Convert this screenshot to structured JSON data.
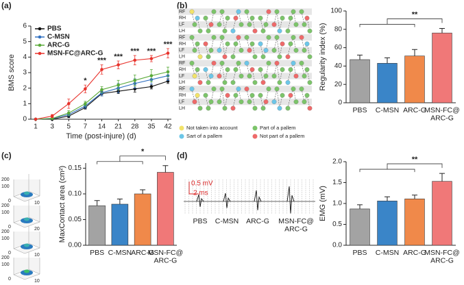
{
  "panel_labels": [
    "(a)",
    "(b)",
    "(c)",
    "(d)"
  ],
  "chart_data": [
    {
      "type": "line",
      "x_label": "Time (post-injure) (d)",
      "y_label": "BMS score",
      "categories": [
        "1",
        "3",
        "5",
        "7",
        "14",
        "21",
        "28",
        "35",
        "42"
      ],
      "ylim": [
        0,
        6
      ],
      "yticks": [
        0,
        1,
        2,
        3,
        4,
        5,
        6
      ],
      "legend": "upper left",
      "series": [
        {
          "name": "PBS",
          "color": "#111111",
          "values": [
            0,
            0,
            0.2,
            0.75,
            1.65,
            1.8,
            1.95,
            2.1,
            2.45
          ],
          "errors": [
            0,
            0.05,
            0.1,
            0.1,
            0.15,
            0.15,
            0.2,
            0.15,
            0.15
          ]
        },
        {
          "name": "C-MSN",
          "color": "#2f6fc0",
          "values": [
            0,
            0.05,
            0.3,
            0.85,
            1.7,
            2.0,
            2.3,
            2.55,
            2.8
          ],
          "errors": [
            0,
            0.05,
            0.1,
            0.15,
            0.2,
            0.3,
            0.3,
            0.3,
            0.3
          ]
        },
        {
          "name": "ARC-G",
          "color": "#5aaa3a",
          "values": [
            0,
            0.05,
            0.4,
            1.0,
            1.9,
            2.2,
            2.5,
            2.8,
            3.05
          ],
          "errors": [
            0,
            0.05,
            0.15,
            0.15,
            0.2,
            0.3,
            0.35,
            0.4,
            0.3
          ]
        },
        {
          "name": "MSN-FC@ARC-G",
          "color": "#e8332c",
          "values": [
            0,
            0.2,
            1.0,
            1.95,
            3.2,
            3.5,
            3.8,
            3.9,
            4.25
          ],
          "errors": [
            0,
            0.1,
            0.3,
            0.25,
            0.3,
            0.25,
            0.3,
            0.2,
            0.3
          ]
        }
      ],
      "annotations": [
        {
          "text": "*",
          "x": "7"
        },
        {
          "text": "***",
          "x": "14"
        },
        {
          "text": "***",
          "x": "21"
        },
        {
          "text": "***",
          "x": "28"
        },
        {
          "text": "***",
          "x": "35"
        },
        {
          "text": "***",
          "x": "42"
        }
      ]
    },
    {
      "type": "bar",
      "y_label": "Regularity index (%)",
      "categories": [
        "PBS",
        "C-MSN",
        "ARC-G",
        "MSN-FC@\nARC-G"
      ],
      "values": [
        47,
        43,
        51,
        76
      ],
      "errors": [
        5,
        6,
        7,
        5
      ],
      "colors": [
        "#a3a3a3",
        "#3a85c8",
        "#f0894a",
        "#f07878"
      ],
      "ylim": [
        0,
        100
      ],
      "yticks": [
        0,
        20,
        40,
        60,
        80,
        100
      ],
      "annotations": [
        {
          "text": "**"
        }
      ]
    },
    {
      "type": "bar",
      "y_label": "MaxContact area (cm²)",
      "categories": [
        "PBS",
        "C-MSN",
        "ARC-G",
        "MSN-FC@\nARC-G"
      ],
      "values": [
        0.077,
        0.08,
        0.1,
        0.142
      ],
      "errors": [
        0.01,
        0.01,
        0.008,
        0.013
      ],
      "colors": [
        "#a3a3a3",
        "#3a85c8",
        "#f0894a",
        "#f07878"
      ],
      "ylim": [
        0,
        0.16
      ],
      "yticks": [
        {
          "value": 0,
          "label": "0.00"
        },
        {
          "value": 0.05,
          "label": "0.05"
        },
        {
          "value": 0.1,
          "label": "0.10"
        },
        {
          "value": 0.15,
          "label": "0.15"
        }
      ],
      "annotations": [
        {
          "text": "*"
        }
      ]
    },
    {
      "type": "bar",
      "y_label": "EMG (mV)",
      "categories": [
        "PBS",
        "C-MSN",
        "ARC-G",
        "MSN-FC@\nARC-G"
      ],
      "values": [
        0.87,
        1.06,
        1.11,
        1.53
      ],
      "errors": [
        0.1,
        0.1,
        0.09,
        0.19
      ],
      "colors": [
        "#a3a3a3",
        "#3a85c8",
        "#f0894a",
        "#f07878"
      ],
      "ylim": [
        0,
        2
      ],
      "yticks": [
        {
          "value": 0,
          "label": "0.0"
        },
        {
          "value": 0.5,
          "label": "0.5"
        },
        {
          "value": 1,
          "label": "1.0"
        },
        {
          "value": 1.5,
          "label": "1.5"
        },
        {
          "value": 2,
          "label": "2.0"
        }
      ],
      "annotations": [
        {
          "text": "**"
        }
      ]
    }
  ],
  "gait_diagram": {
    "row_labels": [
      "RF",
      "RH",
      "LF",
      "LH",
      "RF",
      "RH",
      "LF",
      "LH",
      "RF",
      "RH",
      "LF",
      "LH",
      "RF",
      "RH",
      "LF",
      "LH"
    ],
    "legend": [
      {
        "text": "Not taken into account",
        "color": "#f2e36a"
      },
      {
        "text": "Part of a pallem",
        "color": "#7cc46a"
      },
      {
        "text": "Sart of a pallem",
        "color": "#6cc6e8"
      },
      {
        "text": "Not part of a pallem",
        "color": "#ee6a6a"
      }
    ]
  },
  "surface_plots": [
    {
      "labels": [
        "200",
        "100",
        "0",
        "10"
      ]
    },
    {
      "labels": [
        "200",
        "100",
        "0",
        "20"
      ]
    },
    {
      "labels": [
        "200",
        "100",
        "0",
        "10"
      ]
    },
    {
      "labels": [
        "200",
        "100",
        "0",
        "10"
      ]
    }
  ],
  "emg_traces": {
    "scale": [
      "0.5 mV",
      "2 ms"
    ],
    "labels": [
      "PBS",
      "C-MSN",
      "ARC-G",
      "MSN-FC@\nARC-G"
    ]
  }
}
